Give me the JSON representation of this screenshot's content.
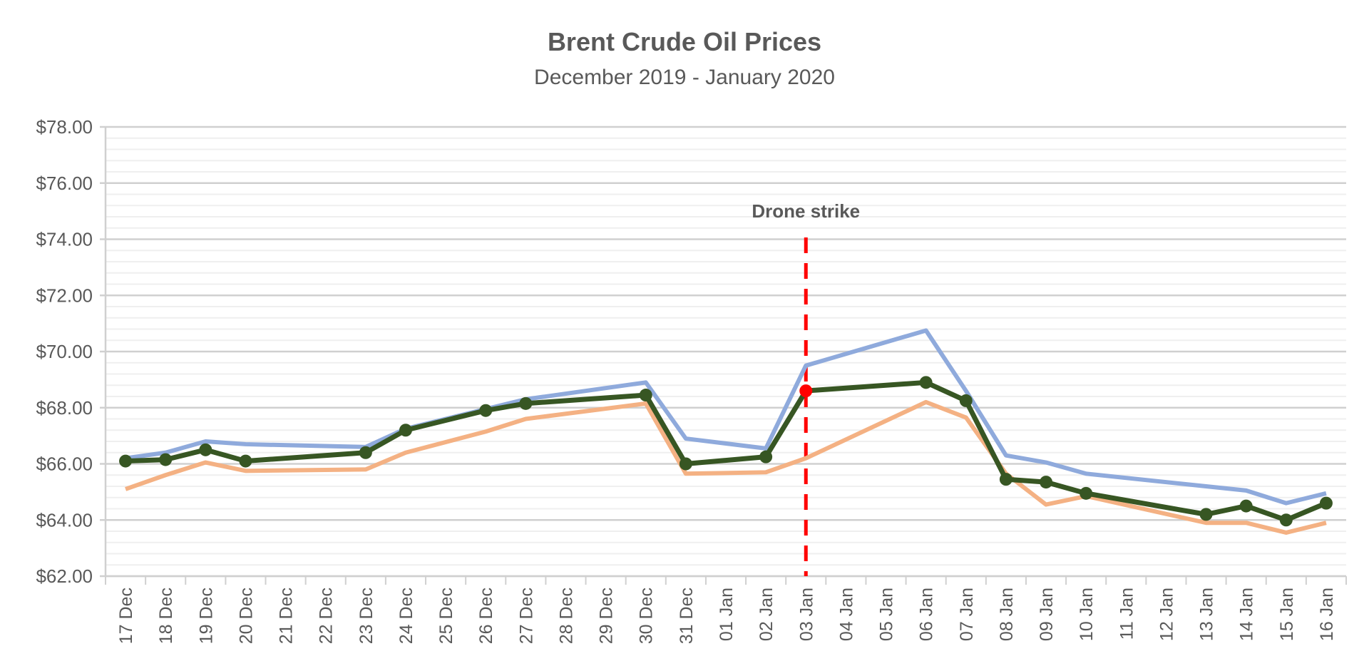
{
  "chart_data": {
    "type": "line",
    "title": "Brent Crude Oil Prices",
    "subtitle": "December 2019 - January 2020",
    "xlabel": "",
    "ylabel": "",
    "ylim": [
      62,
      78
    ],
    "y_major_step": 2,
    "y_minor_step": 0.4,
    "y_tick_labels": [
      "$62.00",
      "$64.00",
      "$66.00",
      "$68.00",
      "$70.00",
      "$72.00",
      "$74.00",
      "$76.00",
      "$78.00"
    ],
    "grid": true,
    "legend": "none",
    "categories": [
      "17 Dec",
      "18 Dec",
      "19 Dec",
      "20 Dec",
      "21 Dec",
      "22 Dec",
      "23 Dec",
      "24 Dec",
      "25 Dec",
      "26 Dec",
      "27 Dec",
      "28 Dec",
      "29 Dec",
      "30 Dec",
      "31 Dec",
      "01 Jan",
      "02 Jan",
      "03 Jan",
      "04 Jan",
      "05 Jan",
      "06 Jan",
      "07 Jan",
      "08 Jan",
      "09 Jan",
      "10 Jan",
      "11 Jan",
      "12 Jan",
      "13 Jan",
      "14 Jan",
      "15 Jan",
      "16 Jan"
    ],
    "series": [
      {
        "color": "#8faadc",
        "markers": false,
        "values": [
          66.2,
          66.4,
          66.8,
          66.7,
          null,
          null,
          66.6,
          67.25,
          null,
          67.95,
          68.3,
          null,
          null,
          68.9,
          66.9,
          null,
          66.55,
          69.5,
          null,
          null,
          70.75,
          68.6,
          66.3,
          66.05,
          65.65,
          null,
          null,
          65.2,
          65.05,
          64.6,
          64.95
        ]
      },
      {
        "color": "#f4b183",
        "markers": false,
        "values": [
          65.1,
          65.6,
          66.05,
          65.75,
          null,
          null,
          65.8,
          66.4,
          null,
          67.15,
          67.6,
          null,
          null,
          68.15,
          65.65,
          null,
          65.7,
          66.2,
          null,
          null,
          68.2,
          67.65,
          65.65,
          64.55,
          64.85,
          null,
          null,
          63.9,
          63.9,
          63.55,
          63.9
        ]
      },
      {
        "color": "#375623",
        "markers": true,
        "values": [
          66.1,
          66.15,
          66.5,
          66.1,
          null,
          null,
          66.4,
          67.2,
          null,
          67.9,
          68.15,
          null,
          null,
          68.45,
          66.0,
          null,
          66.25,
          68.6,
          null,
          null,
          68.9,
          68.25,
          65.45,
          65.35,
          64.95,
          null,
          null,
          64.2,
          64.5,
          64.0,
          64.6
        ]
      }
    ],
    "highlight_point": {
      "category": "03 Jan",
      "series_index": 2,
      "color": "#ff0000"
    },
    "annotation": {
      "text": "Drone strike",
      "category": "03 Jan",
      "line_color": "#ff0000",
      "line_style": "dashed"
    }
  }
}
